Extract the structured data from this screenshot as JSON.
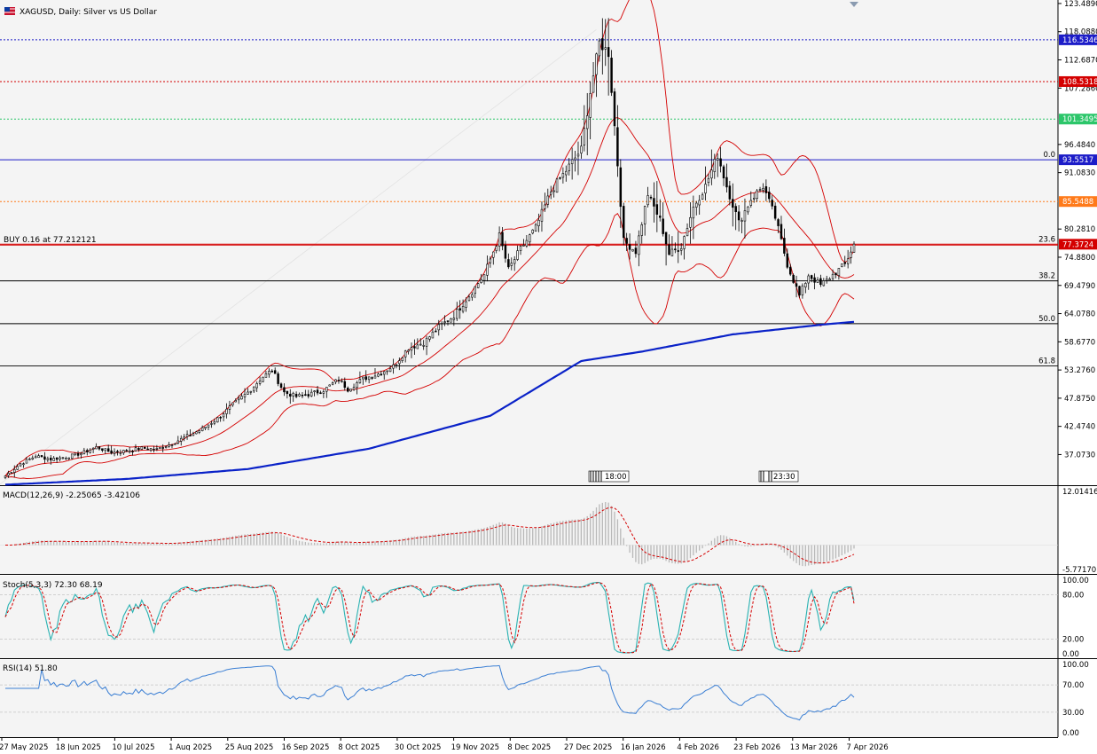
{
  "symbol_title": "XAGUSD, Daily:  Silver vs US Dollar",
  "colors": {
    "background": "#f4f4f4",
    "candle_up": "#ffffff",
    "candle_down": "#000000",
    "bollinger": "#d40000",
    "ma": "#0a22c8",
    "line_blue": "#1c1cc8",
    "line_red": "#d40000",
    "line_green": "#2cc66a",
    "line_orange": "#ff7a1a",
    "macd_signal": "#d40000",
    "macd_hist": "#b8b8b8",
    "stoch_main": "#29b2b2",
    "stoch_signal": "#d40000",
    "rsi": "#3b7fd4"
  },
  "price_axis": {
    "min": 31.2,
    "max": 123.48,
    "ticks": [
      "123.4890",
      "118.0880",
      "112.6870",
      "107.2860",
      "96.4840",
      "91.0830",
      "80.2810",
      "74.8800",
      "69.4790",
      "64.0780",
      "58.6770",
      "53.2760",
      "47.8750",
      "42.4740",
      "37.0730"
    ]
  },
  "price_tags": [
    {
      "label": "116.5346",
      "value": 116.5346,
      "color": "#1c1cc8",
      "style": "dotted"
    },
    {
      "label": "108.5318",
      "value": 108.5318,
      "color": "#d40000",
      "style": "dotted"
    },
    {
      "label": "101.3495",
      "value": 101.3495,
      "color": "#2cc66a",
      "style": "dotted"
    },
    {
      "label": "93.5517",
      "value": 93.5517,
      "color": "#1c1cc8",
      "style": "solid"
    },
    {
      "label": "85.5488",
      "value": 85.5488,
      "color": "#ff7a1a",
      "style": "dotted"
    },
    {
      "label": "77.3724",
      "value": 77.3724,
      "color": "#d40000",
      "style": "solid"
    }
  ],
  "order_label": "BUY 0.16 at 77.212121",
  "order_price": 77.212121,
  "fib_levels": [
    {
      "label": "0.0",
      "value": 93.5517
    },
    {
      "label": "23.6",
      "value": 77.3724
    },
    {
      "label": "38.2",
      "value": 70.35
    },
    {
      "label": "50.0",
      "value": 62.15
    },
    {
      "label": "61.8",
      "value": 54.05
    }
  ],
  "time_marker_1": "18:00",
  "time_marker_2": "23:30",
  "macd": {
    "label": "MACD(12,26,9) -2.25065 -3.42106",
    "axis_top": "12.01416",
    "axis_bottom": "-5.77170",
    "min": -5.7717,
    "max": 12.01416
  },
  "stoch": {
    "label": "Stoch(5,3,3) 72.30 68.19",
    "ticks": [
      "100.00",
      "80.00",
      "20.00",
      "0.00"
    ]
  },
  "rsi": {
    "label": "RSI(14) 51.80",
    "ticks": [
      "100.00",
      "70.00",
      "30.00",
      "0.00"
    ]
  },
  "dates": [
    "27 May 2025",
    "18 Jun 2025",
    "10 Jul 2025",
    "1 Aug 2025",
    "25 Aug 2025",
    "16 Sep 2025",
    "8 Oct 2025",
    "30 Oct 2025",
    "19 Nov 2025",
    "8 Dec 2025",
    "27 Dec 2025",
    "16 Jan 2026",
    "4 Feb 2026",
    "23 Feb 2026",
    "13 Mar 2026",
    "7 Apr 2026"
  ],
  "chart_data": {
    "type": "candlestick",
    "title": "XAGUSD, Daily:  Silver vs US Dollar",
    "x": [
      "27 May 2025",
      "18 Jun 2025",
      "10 Jul 2025",
      "1 Aug 2025",
      "25 Aug 2025",
      "16 Sep 2025",
      "8 Oct 2025",
      "30 Oct 2025",
      "19 Nov 2025",
      "8 Dec 2025",
      "27 Dec 2025",
      "16 Jan 2026",
      "4 Feb 2026",
      "23 Feb 2026",
      "13 Mar 2026",
      "7 Apr 2026"
    ],
    "close_trend": [
      [
        0,
        33.0
      ],
      [
        5,
        35.3
      ],
      [
        10,
        36.8
      ],
      [
        15,
        36.2
      ],
      [
        20,
        36.6
      ],
      [
        25,
        37.3
      ],
      [
        30,
        38.5
      ],
      [
        35,
        37.5
      ],
      [
        40,
        37.8
      ],
      [
        45,
        38.3
      ],
      [
        50,
        38.1
      ],
      [
        55,
        39.2
      ],
      [
        60,
        40.6
      ],
      [
        65,
        42.0
      ],
      [
        70,
        44.0
      ],
      [
        75,
        46.6
      ],
      [
        80,
        49.0
      ],
      [
        85,
        52.0
      ],
      [
        88,
        53.2
      ],
      [
        92,
        49.0
      ],
      [
        96,
        48.2
      ],
      [
        100,
        48.6
      ],
      [
        105,
        49.4
      ],
      [
        110,
        51.5
      ],
      [
        113,
        49.6
      ],
      [
        118,
        51.6
      ],
      [
        123,
        52.5
      ],
      [
        128,
        54.0
      ],
      [
        133,
        57.5
      ],
      [
        138,
        58.5
      ],
      [
        143,
        61.5
      ],
      [
        148,
        63.7
      ],
      [
        153,
        67.5
      ],
      [
        158,
        71.5
      ],
      [
        163,
        79.0
      ],
      [
        166,
        72.5
      ],
      [
        170,
        76.5
      ],
      [
        175,
        80.5
      ],
      [
        180,
        87.5
      ],
      [
        185,
        91.5
      ],
      [
        190,
        95.5
      ],
      [
        193,
        106.5
      ],
      [
        196,
        116.0
      ],
      [
        199,
        114.0
      ],
      [
        201,
        100.0
      ],
      [
        204,
        78.0
      ],
      [
        208,
        76.0
      ],
      [
        212,
        87.0
      ],
      [
        216,
        82.0
      ],
      [
        219,
        75.5
      ],
      [
        223,
        77.0
      ],
      [
        227,
        84.5
      ],
      [
        231,
        88.5
      ],
      [
        235,
        94.5
      ],
      [
        238,
        88.5
      ],
      [
        242,
        81.5
      ],
      [
        246,
        86.0
      ],
      [
        250,
        88.5
      ],
      [
        254,
        82.5
      ],
      [
        258,
        73.5
      ],
      [
        262,
        67.5
      ],
      [
        265,
        71.5
      ],
      [
        269,
        69.5
      ],
      [
        273,
        71.5
      ],
      [
        277,
        73.5
      ],
      [
        280,
        77.4
      ]
    ],
    "sma": [
      [
        0,
        31.3
      ],
      [
        40,
        32.4
      ],
      [
        80,
        34.3
      ],
      [
        120,
        38.2
      ],
      [
        160,
        44.5
      ],
      [
        190,
        55.0
      ],
      [
        210,
        56.8
      ],
      [
        240,
        60.1
      ],
      [
        270,
        62.0
      ],
      [
        280,
        62.5
      ]
    ],
    "annotations": [
      "BUY 0.16 at 77.212121"
    ],
    "indicators": {
      "macd": {
        "main": -2.25065,
        "signal": -3.42106
      },
      "stoch": {
        "k": 72.3,
        "d": 68.19
      },
      "rsi": 51.8
    },
    "ylim": [
      31.2,
      123.48
    ]
  }
}
